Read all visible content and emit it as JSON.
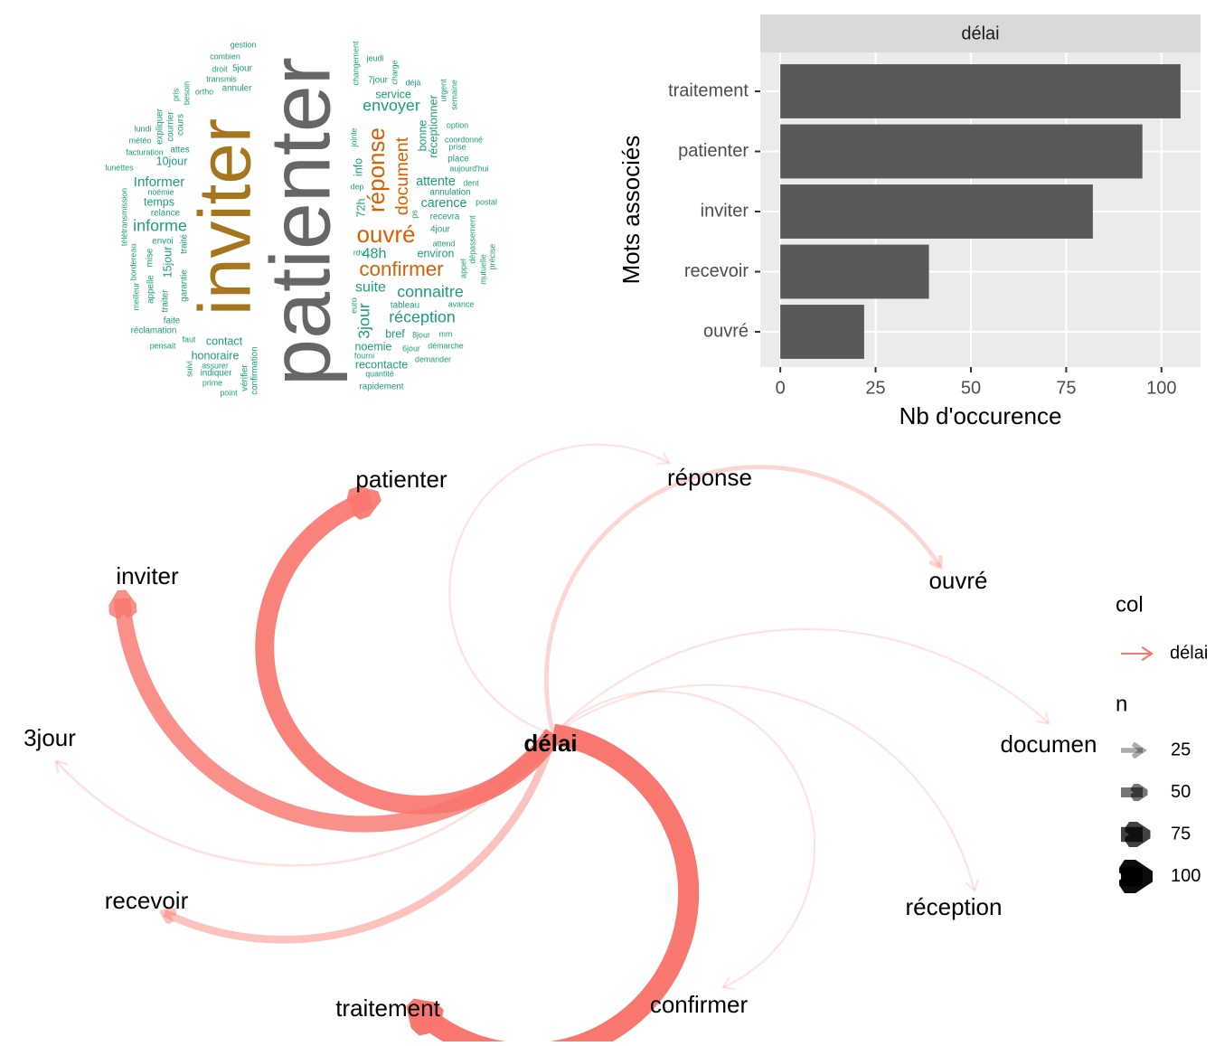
{
  "chart_data": [
    {
      "type": "wordcloud",
      "words": [
        {
          "text": "patienter",
          "freq": 95,
          "color": "#666666"
        },
        {
          "text": "inviter",
          "freq": 82,
          "color": "#a6761d"
        },
        {
          "text": "ouvré",
          "freq": 20,
          "color": "#d95f02"
        },
        {
          "text": "réponse",
          "freq": 20,
          "color": "#d95f02"
        },
        {
          "text": "confirmer",
          "freq": 16,
          "color": "#d95f02"
        },
        {
          "text": "document",
          "freq": 13,
          "color": "#d95f02"
        },
        {
          "text": "envoyer",
          "freq": 11,
          "color": "#1b9e77"
        },
        {
          "text": "connaitre",
          "freq": 11,
          "color": "#1b9e77"
        },
        {
          "text": "réception",
          "freq": 11,
          "color": "#1b9e77"
        },
        {
          "text": "informe",
          "freq": 11,
          "color": "#1b9e77"
        },
        {
          "text": "3jour",
          "freq": 11,
          "color": "#1b9e77"
        },
        {
          "text": "48h",
          "freq": 9,
          "color": "#1b9e77"
        },
        {
          "text": "suite",
          "freq": 9,
          "color": "#1b9e77"
        },
        {
          "text": "Informer",
          "freq": 8,
          "color": "#1b9e77"
        },
        {
          "text": "carence",
          "freq": 7,
          "color": "#1b9e77"
        },
        {
          "text": "attente",
          "freq": 7,
          "color": "#1b9e77"
        },
        {
          "text": "contact",
          "freq": 5,
          "color": "#1b9e77"
        },
        {
          "text": "honoraire",
          "freq": 5,
          "color": "#1b9e77"
        },
        {
          "text": "temps",
          "freq": 5,
          "color": "#1b9e77"
        },
        {
          "text": "10jour",
          "freq": 5,
          "color": "#1b9e77"
        },
        {
          "text": "service",
          "freq": 5,
          "color": "#1b9e77"
        },
        {
          "text": "recontacte",
          "freq": 5,
          "color": "#1b9e77"
        },
        {
          "text": "noemie",
          "freq": 5,
          "color": "#1b9e77"
        },
        {
          "text": "bref",
          "freq": 5,
          "color": "#1b9e77"
        },
        {
          "text": "72h",
          "freq": 5,
          "color": "#1b9e77"
        },
        {
          "text": "info",
          "freq": 5,
          "color": "#1b9e77"
        },
        {
          "text": "environ",
          "freq": 5,
          "color": "#1b9e77"
        },
        {
          "text": "bonne",
          "freq": 5,
          "color": "#1b9e77"
        },
        {
          "text": "réceptionner",
          "freq": 5,
          "color": "#1b9e77"
        },
        {
          "text": "recevra",
          "freq": 2,
          "color": "#1b9e77"
        },
        {
          "text": "4jour",
          "freq": 2,
          "color": "#1b9e77"
        },
        {
          "text": "place",
          "freq": 2,
          "color": "#1b9e77"
        },
        {
          "text": "annulation",
          "freq": 2,
          "color": "#1b9e77"
        },
        {
          "text": "15jour",
          "freq": 5,
          "color": "#1b9e77"
        },
        {
          "text": "garantie",
          "freq": 2,
          "color": "#1b9e77"
        },
        {
          "text": "traité",
          "freq": 2,
          "color": "#1b9e77"
        },
        {
          "text": "annuler",
          "freq": 2,
          "color": "#1b9e77"
        },
        {
          "text": "5jour",
          "freq": 2,
          "color": "#1b9e77"
        },
        {
          "text": "gestion",
          "freq": 1,
          "color": "#1b9e77"
        },
        {
          "text": "combien",
          "freq": 1,
          "color": "#1b9e77"
        },
        {
          "text": "droit",
          "freq": 1,
          "color": "#1b9e77"
        },
        {
          "text": "transmis",
          "freq": 1,
          "color": "#1b9e77"
        },
        {
          "text": "ortho",
          "freq": 1,
          "color": "#1b9e77"
        },
        {
          "text": "lundi",
          "freq": 1,
          "color": "#1b9e77"
        },
        {
          "text": "météo",
          "freq": 1,
          "color": "#1b9e77"
        },
        {
          "text": "facturation",
          "freq": 1,
          "color": "#1b9e77"
        },
        {
          "text": "lunettes",
          "freq": 1,
          "color": "#1b9e77"
        },
        {
          "text": "attes",
          "freq": 2,
          "color": "#1b9e77"
        },
        {
          "text": "expliquer",
          "freq": 2,
          "color": "#1b9e77"
        },
        {
          "text": "courrier",
          "freq": 2,
          "color": "#1b9e77"
        },
        {
          "text": "cours",
          "freq": 2,
          "color": "#1b9e77"
        },
        {
          "text": "noémie",
          "freq": 1,
          "color": "#1b9e77"
        },
        {
          "text": "relance",
          "freq": 2,
          "color": "#1b9e77"
        },
        {
          "text": "envoi",
          "freq": 2,
          "color": "#1b9e77"
        },
        {
          "text": "faite",
          "freq": 2,
          "color": "#1b9e77"
        },
        {
          "text": "réclamation",
          "freq": 2,
          "color": "#1b9e77"
        },
        {
          "text": "pensait",
          "freq": 1,
          "color": "#1b9e77"
        },
        {
          "text": "faut",
          "freq": 1,
          "color": "#1b9e77"
        },
        {
          "text": "indiquer",
          "freq": 2,
          "color": "#1b9e77"
        },
        {
          "text": "assurer",
          "freq": 1,
          "color": "#1b9e77"
        },
        {
          "text": "prime",
          "freq": 1,
          "color": "#1b9e77"
        },
        {
          "text": "point",
          "freq": 1,
          "color": "#1b9e77"
        },
        {
          "text": "vérifier",
          "freq": 2,
          "color": "#1b9e77"
        },
        {
          "text": "confirmation",
          "freq": 2,
          "color": "#1b9e77"
        },
        {
          "text": "quantité",
          "freq": 1,
          "color": "#1b9e77"
        },
        {
          "text": "rapidement",
          "freq": 2,
          "color": "#1b9e77"
        },
        {
          "text": "démarche",
          "freq": 1,
          "color": "#1b9e77"
        },
        {
          "text": "demander",
          "freq": 1,
          "color": "#1b9e77"
        },
        {
          "text": "tableau",
          "freq": 2,
          "color": "#1b9e77"
        },
        {
          "text": "avance",
          "freq": 1,
          "color": "#1b9e77"
        },
        {
          "text": "mm",
          "freq": 1,
          "color": "#1b9e77"
        },
        {
          "text": "8jour",
          "freq": 1,
          "color": "#1b9e77"
        },
        {
          "text": "6jour",
          "freq": 1,
          "color": "#1b9e77"
        },
        {
          "text": "fourni",
          "freq": 1,
          "color": "#1b9e77"
        },
        {
          "text": "attend",
          "freq": 1,
          "color": "#1b9e77"
        },
        {
          "text": "dépassement",
          "freq": 1,
          "color": "#1b9e77"
        },
        {
          "text": "mutuelle",
          "freq": 1,
          "color": "#1b9e77"
        },
        {
          "text": "précise",
          "freq": 1,
          "color": "#1b9e77"
        },
        {
          "text": "appel",
          "freq": 1,
          "color": "#1b9e77"
        },
        {
          "text": "postal",
          "freq": 1,
          "color": "#1b9e77"
        },
        {
          "text": "dent",
          "freq": 1,
          "color": "#1b9e77"
        },
        {
          "text": "aujourd'hui",
          "freq": 1,
          "color": "#1b9e77"
        },
        {
          "text": "prise",
          "freq": 1,
          "color": "#1b9e77"
        },
        {
          "text": "coordonné",
          "freq": 1,
          "color": "#1b9e77"
        },
        {
          "text": "option",
          "freq": 1,
          "color": "#1b9e77"
        },
        {
          "text": "urgent",
          "freq": 1,
          "color": "#1b9e77"
        },
        {
          "text": "semaine",
          "freq": 1,
          "color": "#1b9e77"
        },
        {
          "text": "déjà",
          "freq": 1,
          "color": "#1b9e77"
        },
        {
          "text": "7jour",
          "freq": 2,
          "color": "#1b9e77"
        },
        {
          "text": "jeudi",
          "freq": 1,
          "color": "#1b9e77"
        },
        {
          "text": "charge",
          "freq": 1,
          "color": "#1b9e77"
        },
        {
          "text": "changement",
          "freq": 1,
          "color": "#1b9e77"
        },
        {
          "text": "jointe",
          "freq": 1,
          "color": "#1b9e77"
        },
        {
          "text": "dep",
          "freq": 1,
          "color": "#1b9e77"
        },
        {
          "text": "rdv",
          "freq": 1,
          "color": "#1b9e77"
        },
        {
          "text": "euro",
          "freq": 1,
          "color": "#1b9e77"
        },
        {
          "text": "ps",
          "freq": 1,
          "color": "#1b9e77"
        },
        {
          "text": "télétransmission",
          "freq": 1,
          "color": "#1b9e77"
        },
        {
          "text": "bordereau",
          "freq": 1,
          "color": "#1b9e77"
        },
        {
          "text": "meilleur",
          "freq": 1,
          "color": "#1b9e77"
        },
        {
          "text": "appelle",
          "freq": 2,
          "color": "#1b9e77"
        },
        {
          "text": "mise",
          "freq": 2,
          "color": "#1b9e77"
        },
        {
          "text": "traiter",
          "freq": 2,
          "color": "#1b9e77"
        },
        {
          "text": "besoin",
          "freq": 1,
          "color": "#1b9e77"
        },
        {
          "text": "pris",
          "freq": 1,
          "color": "#1b9e77"
        },
        {
          "text": "suivi",
          "freq": 1,
          "color": "#1b9e77"
        }
      ]
    },
    {
      "type": "bar",
      "orientation": "horizontal",
      "facet": "délai",
      "categories": [
        "traitement",
        "patienter",
        "inviter",
        "recevoir",
        "ouvré"
      ],
      "values": [
        105,
        95,
        82,
        39,
        22
      ],
      "color": "#595959",
      "xlim": [
        -5.25,
        110.25
      ],
      "xticks": [
        0,
        25,
        50,
        75,
        100
      ],
      "xlabel": "Nb d'occurence",
      "ylabel": "Mots associés",
      "grid": true
    },
    {
      "type": "network",
      "color": "#f8766d",
      "nodes": [
        {
          "label": "délai"
        },
        {
          "label": "traitement",
          "n": 105
        },
        {
          "label": "patienter",
          "n": 95
        },
        {
          "label": "inviter",
          "n": 82
        },
        {
          "label": "recevoir",
          "n": 39
        },
        {
          "label": "ouvré",
          "n": 22
        },
        {
          "label": "réponse",
          "n": 10
        },
        {
          "label": "3jour",
          "n": 12
        },
        {
          "label": "documen",
          "n": 10
        },
        {
          "label": "réception",
          "n": 10
        },
        {
          "label": "confirmer",
          "n": 10
        }
      ],
      "legend": {
        "col_title": "col",
        "n_title": "n",
        "n_keys": [
          25,
          50,
          75,
          100
        ]
      }
    }
  ]
}
